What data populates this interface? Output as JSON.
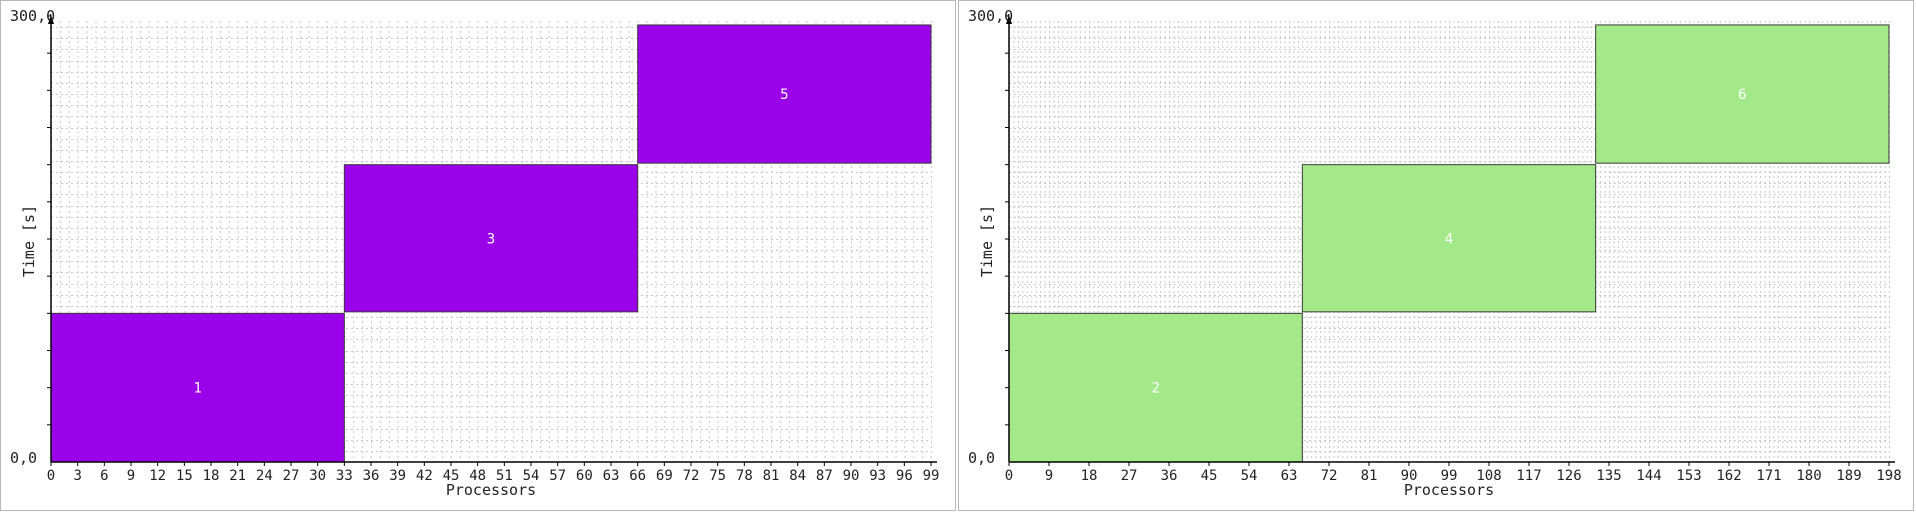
{
  "chart_data": [
    {
      "type": "gantt",
      "title": "",
      "xlabel": "Processors",
      "ylabel": "Time [s]",
      "xlim": [
        0,
        99
      ],
      "ylim": [
        0,
        300
      ],
      "y_top_label": "300,0",
      "y_bottom_label": "0,0",
      "xticks": [
        0,
        3,
        6,
        9,
        12,
        15,
        18,
        21,
        24,
        27,
        30,
        33,
        36,
        39,
        42,
        45,
        48,
        51,
        54,
        57,
        60,
        63,
        66,
        69,
        72,
        75,
        78,
        81,
        84,
        87,
        90,
        93,
        96,
        99
      ],
      "grid": true,
      "color": "#9a03ea",
      "jobs": [
        {
          "label": "1",
          "x_start": 0,
          "x_end": 33,
          "t_start": 0,
          "t_end": 100
        },
        {
          "label": "3",
          "x_start": 33,
          "x_end": 66,
          "t_start": 101,
          "t_end": 200
        },
        {
          "label": "5",
          "x_start": 66,
          "x_end": 99,
          "t_start": 201,
          "t_end": 294
        }
      ]
    },
    {
      "type": "gantt",
      "title": "",
      "xlabel": "Processors",
      "ylabel": "Time [s]",
      "xlim": [
        0,
        198
      ],
      "ylim": [
        0,
        300
      ],
      "y_top_label": "300,0",
      "y_bottom_label": "0,0",
      "xticks": [
        0,
        9,
        18,
        27,
        36,
        45,
        54,
        63,
        72,
        81,
        90,
        99,
        108,
        117,
        126,
        135,
        144,
        153,
        162,
        171,
        180,
        189,
        198
      ],
      "grid": true,
      "color": "#a3e889",
      "jobs": [
        {
          "label": "2",
          "x_start": 0,
          "x_end": 66,
          "t_start": 0,
          "t_end": 100
        },
        {
          "label": "4",
          "x_start": 66,
          "x_end": 132,
          "t_start": 101,
          "t_end": 200
        },
        {
          "label": "6",
          "x_start": 132,
          "x_end": 198,
          "t_start": 201,
          "t_end": 294
        }
      ]
    }
  ]
}
